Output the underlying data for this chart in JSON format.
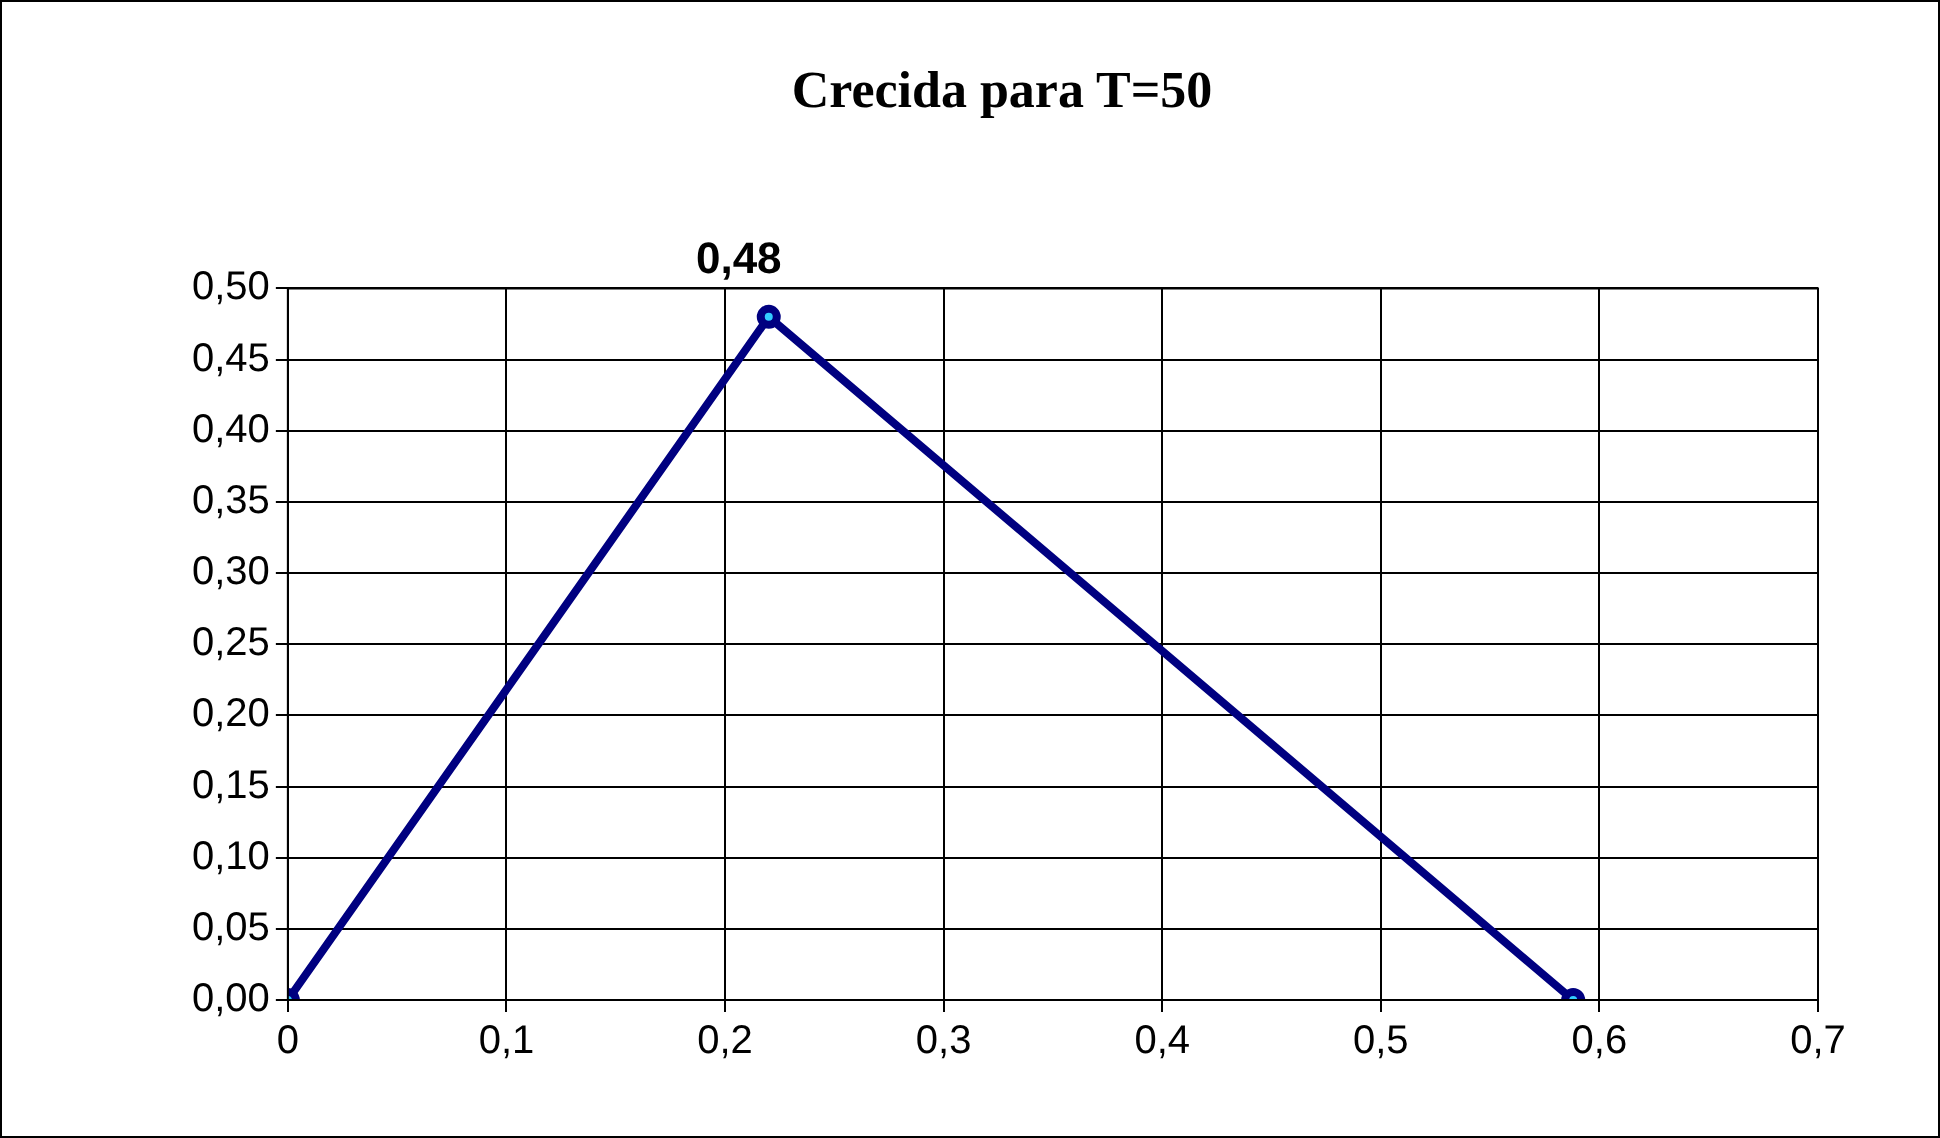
{
  "chart_data": {
    "type": "line",
    "title": "Crecida para T=50",
    "x": [
      0,
      0.22,
      0.588
    ],
    "series": [
      {
        "color": "#000080",
        "values": [
          0,
          0.48,
          0
        ],
        "value_labels": [
          null,
          "0,48",
          null
        ]
      }
    ],
    "xlim": [
      0,
      0.7
    ],
    "xticks": [
      {
        "value": 0,
        "label": "0"
      },
      {
        "value": 0.1,
        "label": "0,1"
      },
      {
        "value": 0.2,
        "label": "0,2"
      },
      {
        "value": 0.3,
        "label": "0,3"
      },
      {
        "value": 0.4,
        "label": "0,4"
      },
      {
        "value": 0.5,
        "label": "0,5"
      },
      {
        "value": 0.6,
        "label": "0,6"
      },
      {
        "value": 0.7,
        "label": "0,7"
      }
    ],
    "ylim": [
      0,
      0.5
    ],
    "yticks": [
      {
        "value": 0,
        "label": "0,00"
      },
      {
        "value": 0.05,
        "label": "0,05"
      },
      {
        "value": 0.1,
        "label": "0,10"
      },
      {
        "value": 0.15,
        "label": "0,15"
      },
      {
        "value": 0.2,
        "label": "0,20"
      },
      {
        "value": 0.25,
        "label": "0,25"
      },
      {
        "value": 0.3,
        "label": "0,30"
      },
      {
        "value": 0.35,
        "label": "0,35"
      },
      {
        "value": 0.4,
        "label": "0,40"
      },
      {
        "value": 0.45,
        "label": "0,45"
      },
      {
        "value": 0.5,
        "label": "0,50"
      }
    ],
    "grid": true,
    "legend": false,
    "marker": "circle",
    "line_style": "solid"
  }
}
